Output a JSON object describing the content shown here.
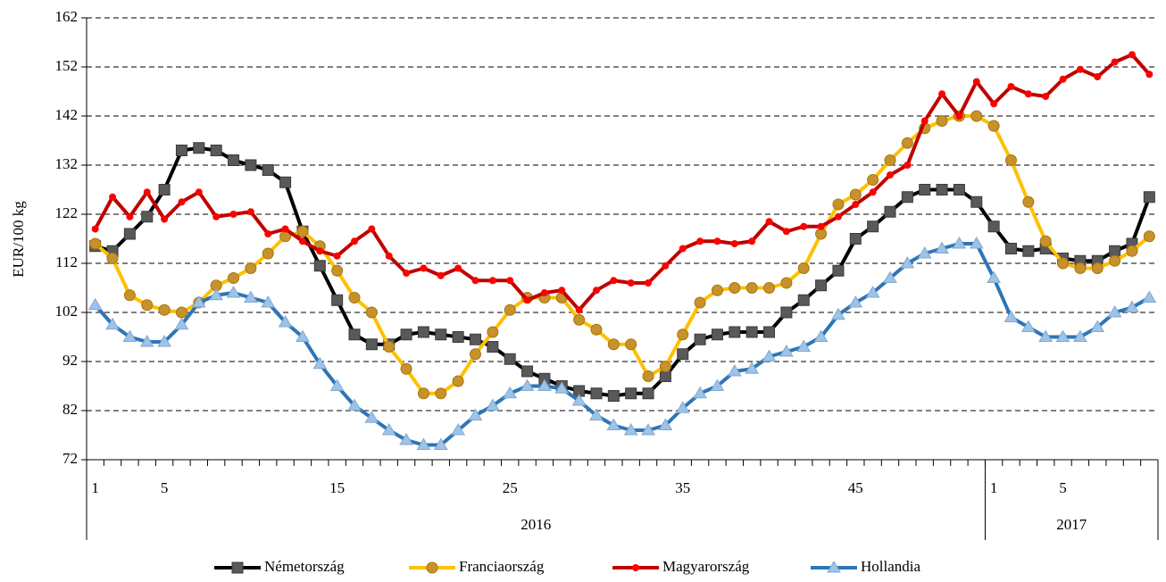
{
  "chart_data": {
    "type": "line",
    "ylabel": "EUR/100 kg",
    "ylim": [
      72,
      162
    ],
    "yticks": [
      72,
      82,
      92,
      102,
      112,
      122,
      132,
      142,
      152,
      162
    ],
    "grid": true,
    "legend": "bottom",
    "category_groups": [
      {
        "label": "2016",
        "categories": [
          "1",
          null,
          null,
          null,
          "5",
          null,
          null,
          null,
          null,
          null,
          null,
          null,
          null,
          null,
          "15",
          null,
          null,
          null,
          null,
          null,
          null,
          null,
          null,
          null,
          "25",
          null,
          null,
          null,
          null,
          null,
          null,
          null,
          null,
          null,
          "35",
          null,
          null,
          null,
          null,
          null,
          null,
          null,
          null,
          null,
          "45",
          null,
          null,
          null,
          null,
          null,
          null,
          null
        ]
      },
      {
        "label": "2017",
        "categories": [
          "1",
          null,
          null,
          null,
          "5",
          null,
          null,
          null,
          null,
          null
        ]
      }
    ],
    "series": [
      {
        "name": "Németország",
        "color": "#000000",
        "marker": "square",
        "marker_color": "#595959",
        "values": [
          115.5,
          114.5,
          118,
          121.5,
          127,
          135,
          135.5,
          135,
          133,
          132,
          131,
          128.5,
          118.5,
          111.5,
          104.5,
          97.5,
          95.5,
          95.5,
          97.5,
          98,
          97.5,
          97,
          96.5,
          95,
          92.5,
          90,
          88.5,
          87,
          86,
          85.5,
          85,
          85.5,
          85.5,
          89,
          93.5,
          96.5,
          97.5,
          98,
          98,
          98,
          102,
          104.5,
          107.5,
          110.5,
          117,
          119.5,
          122.5,
          125.5,
          127,
          127,
          127,
          124.5,
          119.5,
          115,
          114.5,
          115,
          113,
          112.5,
          112.5,
          114.5,
          116,
          125.5
        ]
      },
      {
        "name": "Franciaország",
        "color": "#ffc000",
        "marker": "circle",
        "marker_color": "#c8922a",
        "values": [
          116,
          113,
          105.5,
          103.5,
          102.5,
          102,
          104,
          107.5,
          109,
          111,
          114,
          117.5,
          118.5,
          115.5,
          110.5,
          105,
          102,
          95,
          90.5,
          85.5,
          85.5,
          88,
          93.5,
          98,
          102.5,
          105,
          105,
          105,
          100.5,
          98.5,
          95.5,
          95.5,
          89,
          91,
          97.5,
          104,
          106.5,
          107,
          107,
          107,
          108,
          111,
          118,
          124,
          126,
          129,
          133,
          136.5,
          139.5,
          141,
          142,
          142,
          140,
          133,
          124.5,
          116.5,
          112,
          111,
          111,
          112.5,
          114.5,
          117.5
        ]
      },
      {
        "name": "Magyarország",
        "color": "#c00000",
        "marker": "dot",
        "marker_color": "#ff0000",
        "values": [
          119,
          125.5,
          121.5,
          126.5,
          121,
          124.5,
          126.5,
          121.5,
          122,
          122.5,
          118,
          119,
          116.5,
          114.5,
          113.5,
          116.5,
          119,
          113.5,
          110,
          111,
          109.5,
          111,
          108.5,
          108.5,
          108.5,
          104.5,
          106,
          106.5,
          102.5,
          106.5,
          108.5,
          108,
          108,
          111.5,
          115,
          116.5,
          116.5,
          116,
          116.5,
          120.5,
          118.5,
          119.5,
          119.5,
          121.5,
          124,
          126.5,
          130,
          132,
          141,
          146.5,
          142,
          149,
          144.5,
          148,
          146.5,
          146,
          149.5,
          151.5,
          150,
          153,
          154.5,
          150.5
        ]
      },
      {
        "name": "Hollandia",
        "color": "#2e75b6",
        "marker": "triangle",
        "marker_color": "#9dc3e6",
        "values": [
          103.5,
          99.5,
          97,
          96,
          96,
          99.5,
          104,
          105.5,
          106,
          105,
          104,
          100,
          97,
          91.5,
          87,
          83,
          80.5,
          78,
          76,
          75,
          75,
          78,
          81,
          83,
          85.5,
          87,
          87,
          86.5,
          84,
          81,
          79,
          78,
          78,
          79,
          82.5,
          85.5,
          87,
          90,
          90.5,
          93,
          94,
          95,
          97,
          101.5,
          104,
          106,
          109,
          112,
          114,
          115,
          116,
          116,
          109,
          101,
          99,
          97,
          97,
          97,
          99,
          102,
          103,
          105
        ]
      }
    ]
  }
}
